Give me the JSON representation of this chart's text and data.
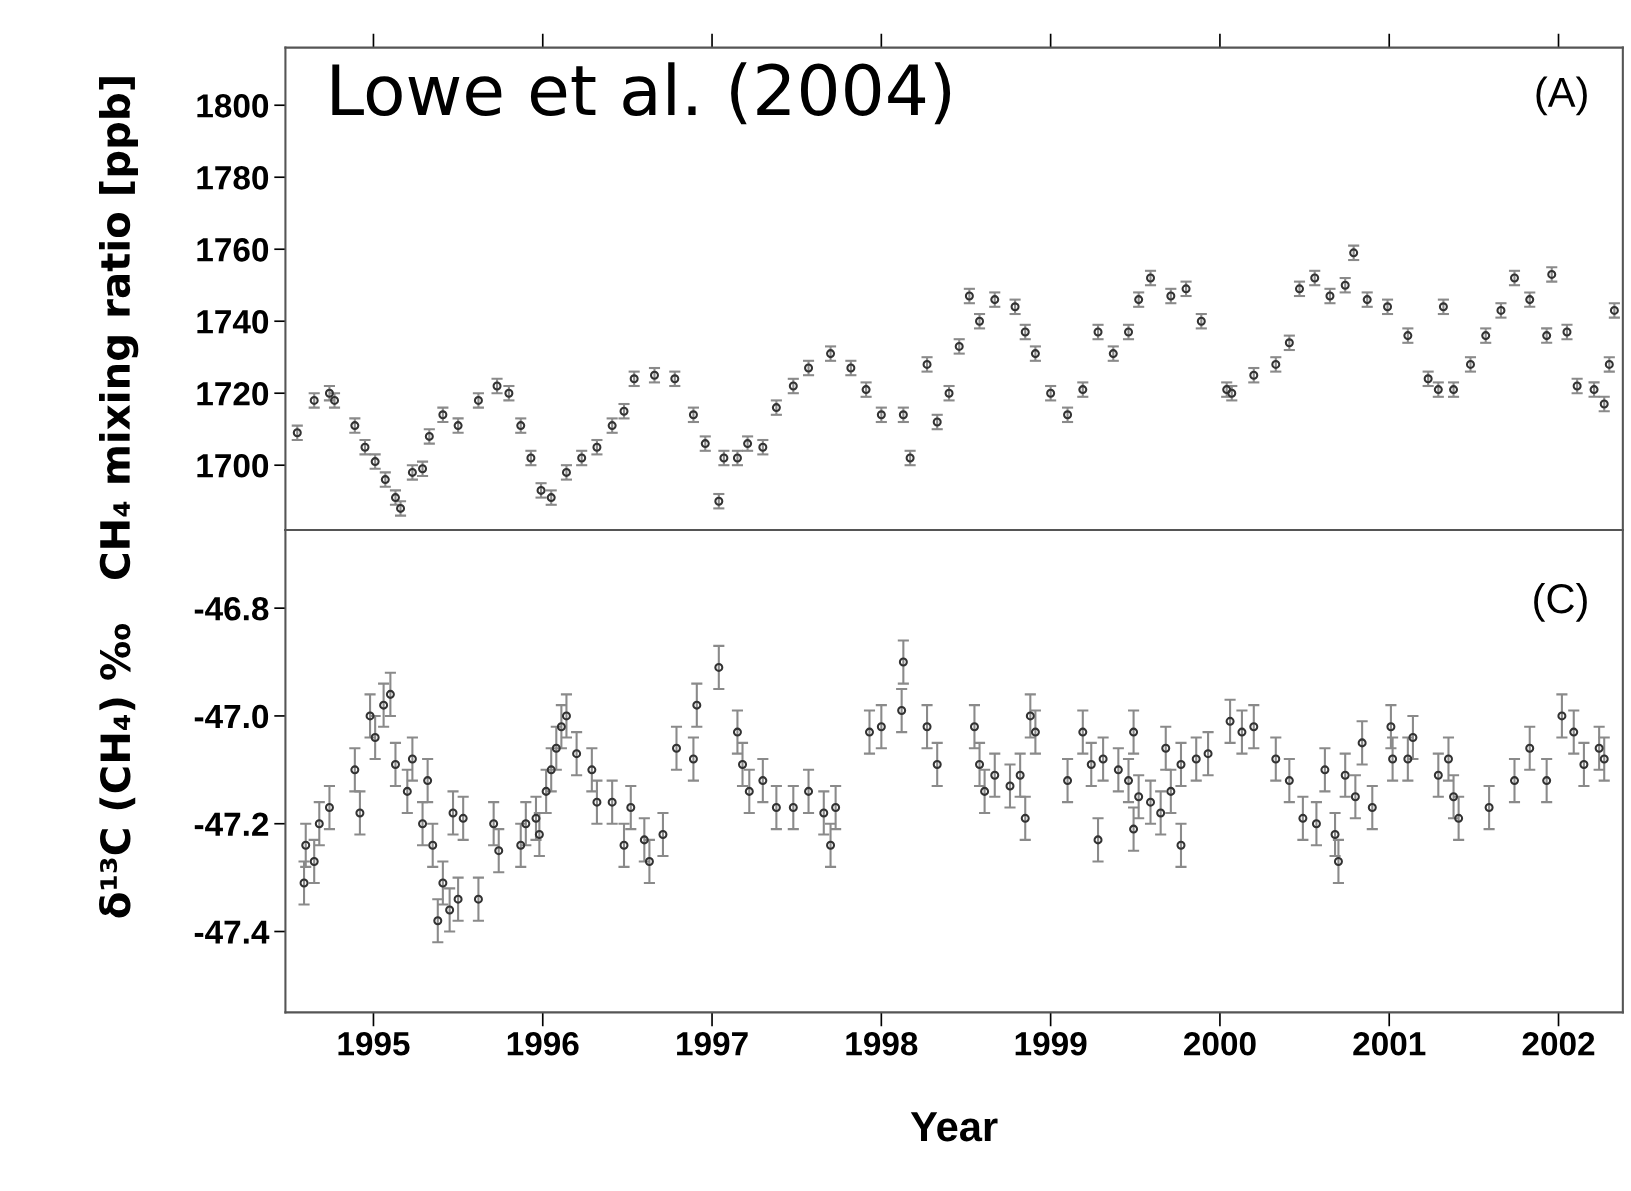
{
  "chart_data": [
    {
      "type": "scatter",
      "ylabel": "CH₄ mixing ratio [ppb]",
      "annotations": [
        "Lowe et al. (2004)",
        "(A)"
      ],
      "xlim": [
        1994.48,
        2002.38
      ],
      "xticks": [
        1995,
        1996,
        1997,
        1998,
        1999,
        2000,
        2001,
        2002
      ],
      "ylim": [
        1682,
        1816
      ],
      "yticks": [
        1700,
        1720,
        1740,
        1760,
        1780,
        1800
      ],
      "tick_labels": "y",
      "grid": false,
      "marker": "circle",
      "series": [
        {
          "color": "#333333",
          "x": [
            1994.55,
            1994.65,
            1994.74,
            1994.77,
            1994.89,
            1994.95,
            1995.01,
            1995.07,
            1995.13,
            1995.16,
            1995.23,
            1995.29,
            1995.33,
            1995.41,
            1995.5,
            1995.62,
            1995.73,
            1995.8,
            1995.87,
            1995.93,
            1995.99,
            1996.05,
            1996.14,
            1996.23,
            1996.32,
            1996.41,
            1996.48,
            1996.54,
            1996.66,
            1996.78,
            1996.89,
            1996.96,
            1997.04,
            1997.07,
            1997.15,
            1997.21,
            1997.3,
            1997.38,
            1997.48,
            1997.57,
            1997.7,
            1997.82,
            1997.91,
            1998.0,
            1998.13,
            1998.17,
            1998.27,
            1998.33,
            1998.4,
            1998.46,
            1998.52,
            1998.58,
            1998.67,
            1998.79,
            1998.85,
            1998.91,
            1999.0,
            1999.1,
            1999.19,
            1999.28,
            1999.37,
            1999.46,
            1999.52,
            1999.59,
            1999.71,
            1999.8,
            1999.89,
            2000.04,
            2000.07,
            2000.2,
            2000.33,
            2000.41,
            2000.47,
            2000.56,
            2000.65,
            2000.74,
            2000.79,
            2000.87,
            2000.99,
            2001.11,
            2001.23,
            2001.29,
            2001.32,
            2001.38,
            2001.48,
            2001.57,
            2001.66,
            2001.74,
            2001.83,
            2001.93,
            2001.96,
            2002.05,
            2002.11,
            2002.21,
            2002.27,
            2002.3,
            2002.33
          ],
          "values": [
            1709,
            1718,
            1720,
            1718,
            1711,
            1705,
            1701,
            1696,
            1691,
            1688,
            1698,
            1699,
            1708,
            1714,
            1711,
            1718,
            1722,
            1720,
            1711,
            1702,
            1693,
            1691,
            1698,
            1702,
            1705,
            1711,
            1715,
            1724,
            1725,
            1724,
            1714,
            1706,
            1690,
            1702,
            1702,
            1706,
            1705,
            1716,
            1722,
            1727,
            1731,
            1727,
            1721,
            1714,
            1714,
            1702,
            1728,
            1712,
            1720,
            1733,
            1747,
            1740,
            1746,
            1744,
            1737,
            1731,
            1720,
            1714,
            1721,
            1737,
            1731,
            1737,
            1746,
            1752,
            1747,
            1749,
            1740,
            1721,
            1720,
            1725,
            1728,
            1734,
            1749,
            1752,
            1747,
            1750,
            1759,
            1746,
            1744,
            1736,
            1724,
            1721,
            1744,
            1721,
            1728,
            1736,
            1743,
            1752,
            1746,
            1736,
            1753,
            1737,
            1722,
            1721,
            1717,
            1728,
            1743
          ],
          "errors": [
            2,
            2,
            2,
            2,
            2,
            2,
            2,
            2,
            2,
            2,
            2,
            2,
            2,
            2,
            2,
            2,
            2,
            2,
            2,
            2,
            2,
            2,
            2,
            2,
            2,
            2,
            2,
            2,
            2,
            2,
            2,
            2,
            2,
            2,
            2,
            2,
            2,
            2,
            2,
            2,
            2,
            2,
            2,
            2,
            2,
            2,
            2,
            2,
            2,
            2,
            2,
            2,
            2,
            2,
            2,
            2,
            2,
            2,
            2,
            2,
            2,
            2,
            2,
            2,
            2,
            2,
            2,
            2,
            2,
            2,
            2,
            2,
            2,
            2,
            2,
            2,
            2,
            2,
            2,
            2,
            2,
            2,
            2,
            2,
            2,
            2,
            2,
            2,
            2,
            2,
            2,
            2,
            2,
            2,
            2,
            2,
            2
          ]
        }
      ]
    },
    {
      "type": "scatter",
      "xlabel": "Year",
      "ylabel": "δ¹³C (CH₄) ‰",
      "annotations": [
        "(C)"
      ],
      "xlim": [
        1994.48,
        2002.38
      ],
      "xticks": [
        1995,
        1996,
        1997,
        1998,
        1999,
        2000,
        2001,
        2002
      ],
      "ylim": [
        -47.55,
        -46.655
      ],
      "yticks": [
        {
          "value": -46.8,
          "label": "-46.8"
        },
        {
          "value": -47.0,
          "label": "-47.0"
        },
        {
          "value": -47.2,
          "label": "-47.2"
        },
        {
          "value": -47.4,
          "label": "-47.4"
        }
      ],
      "grid": false,
      "marker": "circle",
      "series": [
        {
          "color": "#333333",
          "x": [
            1994.59,
            1994.6,
            1994.65,
            1994.68,
            1994.74,
            1994.89,
            1994.92,
            1994.98,
            1995.01,
            1995.06,
            1995.1,
            1995.13,
            1995.2,
            1995.23,
            1995.29,
            1995.32,
            1995.35,
            1995.38,
            1995.41,
            1995.45,
            1995.47,
            1995.5,
            1995.53,
            1995.62,
            1995.71,
            1995.74,
            1995.87,
            1995.9,
            1995.96,
            1995.98,
            1996.02,
            1996.05,
            1996.08,
            1996.11,
            1996.14,
            1996.2,
            1996.29,
            1996.32,
            1996.41,
            1996.48,
            1996.52,
            1996.6,
            1996.63,
            1996.71,
            1996.79,
            1996.89,
            1996.91,
            1997.04,
            1997.15,
            1997.18,
            1997.22,
            1997.3,
            1997.38,
            1997.48,
            1997.57,
            1997.66,
            1997.7,
            1997.73,
            1997.93,
            1998.0,
            1998.12,
            1998.13,
            1998.27,
            1998.33,
            1998.55,
            1998.58,
            1998.61,
            1998.67,
            1998.76,
            1998.82,
            1998.85,
            1998.88,
            1998.91,
            1999.1,
            1999.19,
            1999.24,
            1999.28,
            1999.31,
            1999.4,
            1999.46,
            1999.49,
            1999.49,
            1999.52,
            1999.59,
            1999.65,
            1999.68,
            1999.71,
            1999.77,
            1999.77,
            1999.86,
            1999.93,
            2000.06,
            2000.13,
            2000.2,
            2000.33,
            2000.41,
            2000.49,
            2000.57,
            2000.62,
            2000.68,
            2000.7,
            2000.74,
            2000.8,
            2000.84,
            2000.9,
            2001.01,
            2001.02,
            2001.11,
            2001.14,
            2001.29,
            2001.35,
            2001.38,
            2001.41,
            2001.59,
            2001.74,
            2001.83,
            2001.93,
            2002.02,
            2002.09,
            2002.15,
            2002.24,
            2002.27
          ],
          "values": [
            -47.31,
            -47.24,
            -47.27,
            -47.2,
            -47.17,
            -47.1,
            -47.18,
            -47.0,
            -47.04,
            -46.98,
            -46.96,
            -47.09,
            -47.14,
            -47.08,
            -47.2,
            -47.12,
            -47.24,
            -47.38,
            -47.31,
            -47.36,
            -47.18,
            -47.34,
            -47.19,
            -47.34,
            -47.2,
            -47.25,
            -47.24,
            -47.2,
            -47.19,
            -47.22,
            -47.14,
            -47.1,
            -47.06,
            -47.02,
            -47.0,
            -47.07,
            -47.1,
            -47.16,
            -47.16,
            -47.24,
            -47.17,
            -47.23,
            -47.27,
            -47.22,
            -47.06,
            -47.08,
            -46.98,
            -46.91,
            -47.03,
            -47.09,
            -47.14,
            -47.12,
            -47.17,
            -47.17,
            -47.14,
            -47.18,
            -47.24,
            -47.17,
            -47.03,
            -47.02,
            -46.99,
            -46.9,
            -47.02,
            -47.09,
            -47.02,
            -47.09,
            -47.14,
            -47.11,
            -47.13,
            -47.11,
            -47.19,
            -47.0,
            -47.03,
            -47.12,
            -47.03,
            -47.09,
            -47.23,
            -47.08,
            -47.1,
            -47.12,
            -47.03,
            -47.21,
            -47.15,
            -47.16,
            -47.18,
            -47.06,
            -47.14,
            -47.24,
            -47.09,
            -47.08,
            -47.07,
            -47.01,
            -47.03,
            -47.02,
            -47.08,
            -47.12,
            -47.19,
            -47.2,
            -47.1,
            -47.22,
            -47.27,
            -47.11,
            -47.15,
            -47.05,
            -47.17,
            -47.02,
            -47.08,
            -47.08,
            -47.04,
            -47.11,
            -47.08,
            -47.15,
            -47.19,
            -47.17,
            -47.12,
            -47.06,
            -47.12,
            -47.0,
            -47.03,
            -47.09,
            -47.06,
            -47.08
          ],
          "errors": [
            0.04,
            0.04,
            0.04,
            0.04,
            0.04,
            0.04,
            0.04,
            0.04,
            0.04,
            0.04,
            0.04,
            0.04,
            0.04,
            0.04,
            0.04,
            0.04,
            0.04,
            0.04,
            0.04,
            0.04,
            0.04,
            0.04,
            0.04,
            0.04,
            0.04,
            0.04,
            0.04,
            0.04,
            0.04,
            0.04,
            0.04,
            0.04,
            0.04,
            0.04,
            0.04,
            0.04,
            0.04,
            0.04,
            0.04,
            0.04,
            0.04,
            0.04,
            0.04,
            0.04,
            0.04,
            0.04,
            0.04,
            0.04,
            0.04,
            0.04,
            0.04,
            0.04,
            0.04,
            0.04,
            0.04,
            0.04,
            0.04,
            0.04,
            0.04,
            0.04,
            0.04,
            0.04,
            0.04,
            0.04,
            0.04,
            0.04,
            0.04,
            0.04,
            0.04,
            0.04,
            0.04,
            0.04,
            0.04,
            0.04,
            0.04,
            0.04,
            0.04,
            0.04,
            0.04,
            0.04,
            0.04,
            0.04,
            0.04,
            0.04,
            0.04,
            0.04,
            0.04,
            0.04,
            0.04,
            0.04,
            0.04,
            0.04,
            0.04,
            0.04,
            0.04,
            0.04,
            0.04,
            0.04,
            0.04,
            0.04,
            0.04,
            0.04,
            0.04,
            0.04,
            0.04,
            0.04,
            0.04,
            0.04,
            0.04,
            0.04,
            0.04,
            0.04,
            0.04,
            0.04,
            0.04,
            0.04,
            0.04,
            0.04,
            0.04,
            0.04,
            0.04,
            0.04
          ]
        }
      ]
    }
  ]
}
